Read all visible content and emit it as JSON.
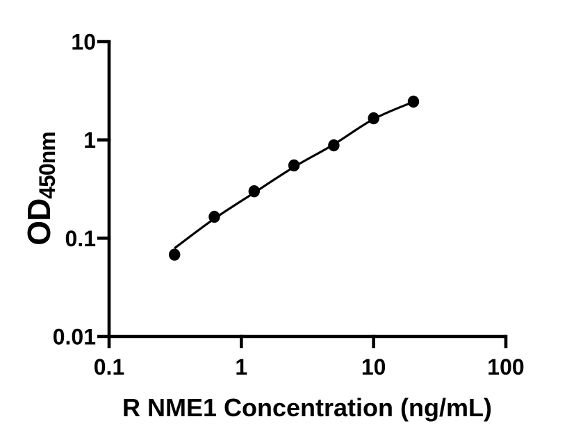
{
  "figure": {
    "background": "#ffffff",
    "ink_color": "#000000"
  },
  "chart_data": {
    "type": "scatter",
    "subtype": "standard-curve-with-fit-line",
    "title": "",
    "xlabel": "R NME1 Concentration (ng/mL)",
    "ylabel_main": "OD",
    "ylabel_sub": "450nm",
    "x_scale": "log10",
    "y_scale": "log10",
    "xlim": [
      0.1,
      100
    ],
    "ylim": [
      0.01,
      10
    ],
    "x_ticks": [
      0.1,
      1,
      10,
      100
    ],
    "x_tick_labels": [
      "0.1",
      "1",
      "10",
      "100"
    ],
    "y_ticks": [
      0.01,
      0.1,
      1,
      10
    ],
    "y_tick_labels": [
      "0.01",
      "0.1",
      "1",
      "10"
    ],
    "grid": false,
    "legend": null,
    "marker": "filled-black-circle",
    "line": "smooth-4PL-fit",
    "points": [
      {
        "x": 0.3125,
        "y": 0.068
      },
      {
        "x": 0.625,
        "y": 0.165
      },
      {
        "x": 1.25,
        "y": 0.3
      },
      {
        "x": 2.5,
        "y": 0.55
      },
      {
        "x": 5,
        "y": 0.88
      },
      {
        "x": 10,
        "y": 1.66
      },
      {
        "x": 20,
        "y": 2.45
      }
    ],
    "fit_curve": [
      {
        "x": 0.3125,
        "y": 0.079
      },
      {
        "x": 0.625,
        "y": 0.158
      },
      {
        "x": 1.25,
        "y": 0.29
      },
      {
        "x": 2.5,
        "y": 0.53
      },
      {
        "x": 5,
        "y": 0.9
      },
      {
        "x": 10,
        "y": 1.63
      },
      {
        "x": 20,
        "y": 2.44
      }
    ]
  }
}
